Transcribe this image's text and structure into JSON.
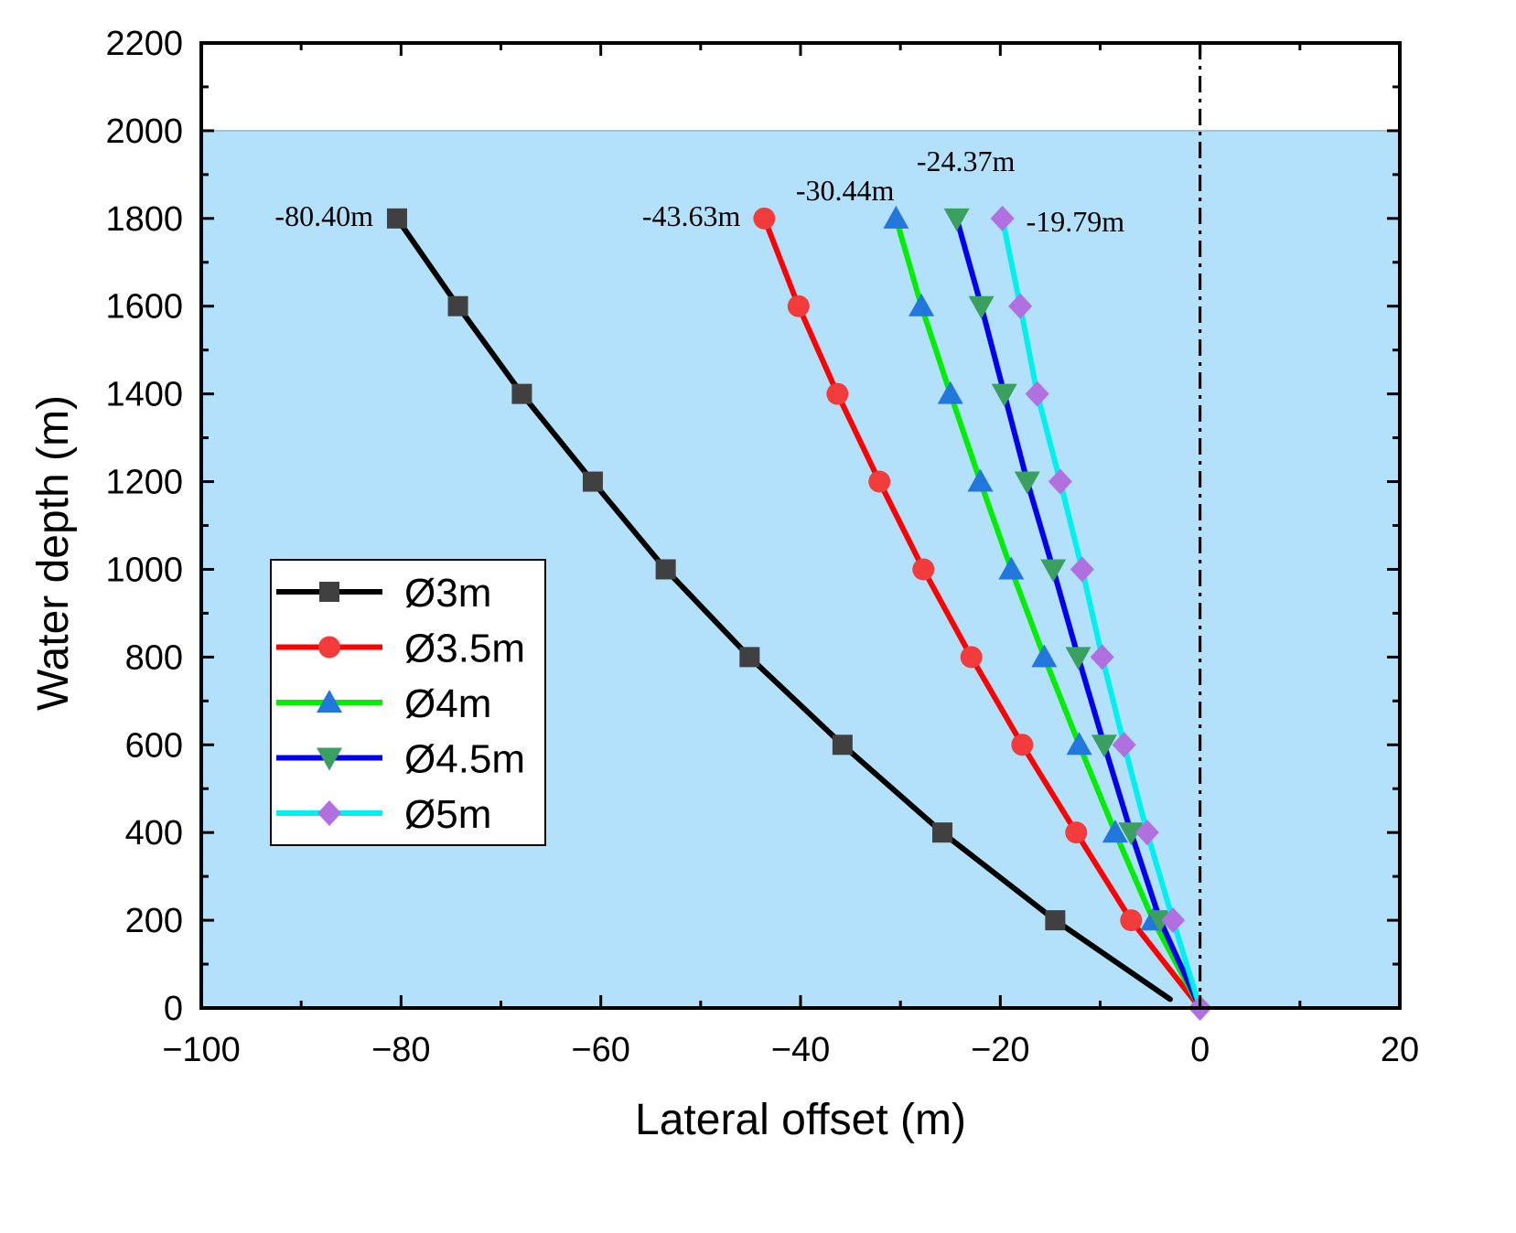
{
  "chart_data": {
    "type": "line",
    "title": "",
    "xlabel": "Lateral offset (m)",
    "ylabel": "Water depth (m)",
    "xlim": [
      -100,
      20
    ],
    "ylim": [
      0,
      2200
    ],
    "xticks": [
      -100,
      -80,
      -60,
      -40,
      -20,
      0,
      20
    ],
    "xtick_labels": [
      "−100",
      "−80",
      "−60",
      "−40",
      "−20",
      "0",
      "20"
    ],
    "yticks": [
      0,
      200,
      400,
      600,
      800,
      1000,
      1200,
      1400,
      1600,
      1800,
      2000,
      2200
    ],
    "ytick_labels": [
      "0",
      "200",
      "400",
      "600",
      "800",
      "1000",
      "1200",
      "1400",
      "1600",
      "1800",
      "2000",
      "2200"
    ],
    "water_surface_depth": 2000,
    "reference_line_x": 0,
    "legend_position": "left-middle",
    "colors": {
      "water": "#b3e0fa",
      "reference_line": "#000000"
    },
    "series": [
      {
        "name": "Ø3m",
        "line_color": "#000000",
        "marker": "square",
        "marker_color": "#404040",
        "points": [
          [
            -3,
            20
          ],
          [
            -14.5,
            200
          ],
          [
            -25.8,
            400
          ],
          [
            -35.8,
            600
          ],
          [
            -45.1,
            800
          ],
          [
            -53.5,
            1000
          ],
          [
            -60.8,
            1200
          ],
          [
            -67.9,
            1400
          ],
          [
            -74.3,
            1600
          ],
          [
            -80.4,
            1800
          ]
        ],
        "marker_points": [
          [
            -14.5,
            200
          ],
          [
            -25.8,
            400
          ],
          [
            -35.8,
            600
          ],
          [
            -45.1,
            800
          ],
          [
            -53.5,
            1000
          ],
          [
            -60.8,
            1200
          ],
          [
            -67.9,
            1400
          ],
          [
            -74.3,
            1600
          ],
          [
            -80.4,
            1800
          ]
        ]
      },
      {
        "name": "Ø3.5m",
        "line_color": "#ff0000",
        "marker": "circle",
        "marker_color": "#f23c3c",
        "points": [
          [
            0,
            0
          ],
          [
            -6.9,
            200
          ],
          [
            -12.4,
            400
          ],
          [
            -17.8,
            600
          ],
          [
            -22.9,
            800
          ],
          [
            -27.7,
            1000
          ],
          [
            -32.1,
            1200
          ],
          [
            -36.3,
            1400
          ],
          [
            -40.2,
            1600
          ],
          [
            -43.63,
            1800
          ]
        ],
        "marker_points": [
          [
            -6.9,
            200
          ],
          [
            -12.4,
            400
          ],
          [
            -17.8,
            600
          ],
          [
            -22.9,
            800
          ],
          [
            -27.7,
            1000
          ],
          [
            -32.1,
            1200
          ],
          [
            -36.3,
            1400
          ],
          [
            -40.2,
            1600
          ],
          [
            -43.63,
            1800
          ]
        ]
      },
      {
        "name": "Ø4m",
        "line_color": "#00ee00",
        "marker": "triangle-up",
        "marker_color": "#2277dd",
        "points": [
          [
            0,
            0
          ],
          [
            -4.7,
            200
          ],
          [
            -8.5,
            400
          ],
          [
            -12.1,
            600
          ],
          [
            -15.6,
            800
          ],
          [
            -18.9,
            1000
          ],
          [
            -22,
            1200
          ],
          [
            -25,
            1400
          ],
          [
            -27.9,
            1600
          ],
          [
            -30.44,
            1800
          ]
        ],
        "marker_points": [
          [
            -4.7,
            200
          ],
          [
            -8.5,
            400
          ],
          [
            -12.1,
            600
          ],
          [
            -15.6,
            800
          ],
          [
            -18.9,
            1000
          ],
          [
            -22,
            1200
          ],
          [
            -25,
            1400
          ],
          [
            -27.9,
            1600
          ],
          [
            -30.44,
            1800
          ]
        ]
      },
      {
        "name": "Ø4.5m",
        "line_color": "#0000ee",
        "marker": "triangle-down",
        "marker_color": "#3aa060",
        "points": [
          [
            0,
            0
          ],
          [
            -4,
            200
          ],
          [
            -6.9,
            400
          ],
          [
            -9.6,
            600
          ],
          [
            -12.2,
            800
          ],
          [
            -14.7,
            1000
          ],
          [
            -17.3,
            1200
          ],
          [
            -19.6,
            1400
          ],
          [
            -21.9,
            1600
          ],
          [
            -24.37,
            1800
          ]
        ],
        "marker_points": [
          [
            -4,
            200
          ],
          [
            -6.9,
            400
          ],
          [
            -9.6,
            600
          ],
          [
            -12.2,
            800
          ],
          [
            -14.7,
            1000
          ],
          [
            -17.3,
            1200
          ],
          [
            -19.6,
            1400
          ],
          [
            -21.9,
            1600
          ],
          [
            -24.37,
            1800
          ]
        ]
      },
      {
        "name": "Ø5m",
        "line_color": "#00f0f0",
        "marker": "diamond",
        "marker_color": "#b070e0",
        "points": [
          [
            0,
            0
          ],
          [
            -2.7,
            200
          ],
          [
            -5.3,
            400
          ],
          [
            -7.6,
            600
          ],
          [
            -9.8,
            800
          ],
          [
            -11.8,
            1000
          ],
          [
            -14,
            1200
          ],
          [
            -16.3,
            1400
          ],
          [
            -18,
            1600
          ],
          [
            -19.79,
            1800
          ]
        ],
        "marker_points": [
          [
            0,
            0
          ],
          [
            -2.7,
            200
          ],
          [
            -5.3,
            400
          ],
          [
            -7.6,
            600
          ],
          [
            -9.8,
            800
          ],
          [
            -11.8,
            1000
          ],
          [
            -14,
            1200
          ],
          [
            -16.3,
            1400
          ],
          [
            -18,
            1600
          ],
          [
            -19.79,
            1800
          ]
        ]
      }
    ],
    "annotations": [
      {
        "text": "-80.40m",
        "x": -80.4,
        "y": 1800,
        "anchor": "left"
      },
      {
        "text": "-43.63m",
        "x": -43.63,
        "y": 1800,
        "anchor": "left"
      },
      {
        "text": "-30.44m",
        "x": -30.44,
        "y": 1800,
        "anchor": "above-left"
      },
      {
        "text": "-24.37m",
        "x": -24.37,
        "y": 1800,
        "anchor": "above"
      },
      {
        "text": "-19.79m",
        "x": -19.79,
        "y": 1800,
        "anchor": "right"
      }
    ]
  }
}
